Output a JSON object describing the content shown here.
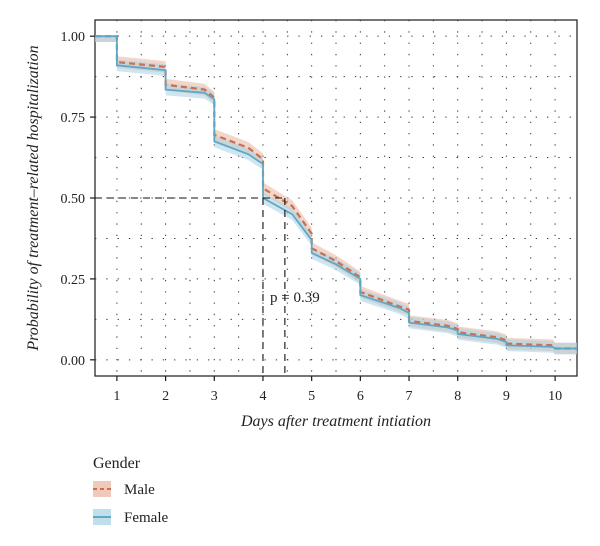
{
  "chart_data": {
    "type": "line",
    "title": "",
    "xlabel": "Days after treatment intiation",
    "ylabel": "Probability of treatment–related hospitalization",
    "xlim": [
      0.55,
      10.45
    ],
    "ylim": [
      -0.05,
      1.05
    ],
    "xticks": [
      1,
      2,
      3,
      4,
      5,
      6,
      7,
      8,
      9,
      10
    ],
    "xtick_labels": [
      "1",
      "2",
      "3",
      "4",
      "5",
      "6",
      "7",
      "8",
      "9",
      "10"
    ],
    "yticks": [
      0.0,
      0.25,
      0.5,
      0.75,
      1.0
    ],
    "ytick_labels": [
      "0.00",
      "0.25",
      "0.50",
      "0.75",
      "1.00"
    ],
    "grid": true,
    "legend_title": "Gender",
    "legend_position": "bottom-left",
    "annotation": "p = 0.39",
    "median_line_y": 0.5,
    "median_days": [
      4.0,
      4.45
    ],
    "series": [
      {
        "name": "Male",
        "style": "dashed",
        "color": "#cc6e50",
        "band_color": "#e8b49c",
        "x": [
          0.55,
          1.0,
          1.0,
          2.0,
          2.0,
          2.8,
          3.0,
          3.0,
          3.7,
          4.0,
          4.0,
          4.6,
          5.0,
          5.0,
          5.5,
          6.0,
          6.0,
          6.8,
          7.0,
          7.0,
          7.8,
          8.0,
          8.0,
          8.8,
          9.0,
          9.0,
          9.95,
          10.0,
          10.45
        ],
        "y": [
          1.0,
          1.0,
          0.92,
          0.905,
          0.85,
          0.835,
          0.81,
          0.695,
          0.655,
          0.62,
          0.53,
          0.475,
          0.39,
          0.345,
          0.305,
          0.255,
          0.21,
          0.165,
          0.155,
          0.12,
          0.105,
          0.095,
          0.085,
          0.07,
          0.06,
          0.05,
          0.045,
          0.035,
          0.035
        ]
      },
      {
        "name": "Female",
        "style": "solid",
        "color": "#5fa8c4",
        "band_color": "#a7d2e3",
        "x": [
          0.55,
          1.0,
          1.0,
          2.0,
          2.0,
          2.8,
          3.0,
          3.0,
          3.7,
          4.0,
          4.0,
          4.6,
          5.0,
          5.0,
          5.5,
          6.0,
          6.0,
          6.8,
          7.0,
          7.0,
          7.8,
          8.0,
          8.0,
          8.8,
          9.0,
          9.0,
          9.95,
          10.0,
          10.45
        ],
        "y": [
          1.0,
          1.0,
          0.91,
          0.895,
          0.835,
          0.825,
          0.805,
          0.675,
          0.635,
          0.605,
          0.5,
          0.45,
          0.37,
          0.33,
          0.295,
          0.25,
          0.2,
          0.16,
          0.145,
          0.115,
          0.1,
          0.09,
          0.08,
          0.065,
          0.055,
          0.045,
          0.04,
          0.035,
          0.035
        ]
      }
    ]
  }
}
